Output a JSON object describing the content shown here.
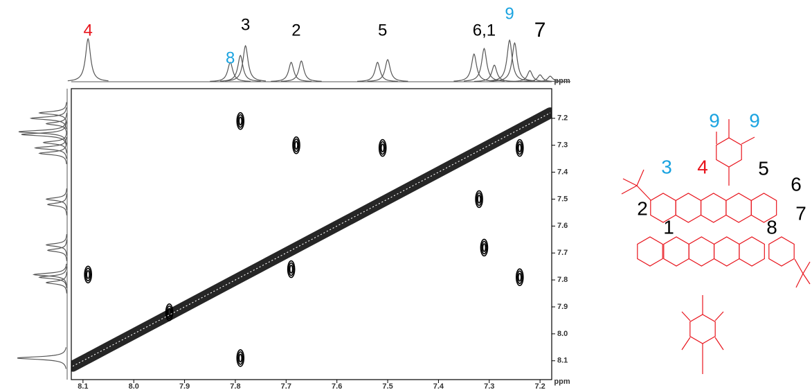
{
  "chart_data": {
    "type": "contour",
    "xlabel": "ppm",
    "trace_label": "ppm",
    "xlim": [
      8.123,
      7.177
    ],
    "ylim": [
      7.09,
      8.17
    ],
    "xticks": [
      8.1,
      {
        "value": 8,
        "label": "8.0"
      },
      7.9,
      7.8,
      7.7,
      7.6,
      7.5,
      7.4,
      7.3,
      7.2
    ],
    "yticks": [
      7.2,
      7.3,
      7.4,
      7.5,
      7.6,
      7.7,
      7.8,
      7.9,
      {
        "value": 8,
        "label": "8.0"
      },
      8.1
    ],
    "color": "#000000",
    "series": [
      {
        "name": "cross",
        "x": [
          7.79,
          7.68,
          7.51,
          7.32,
          7.31,
          7.24,
          8.09,
          7.79,
          7.24,
          7.93,
          7.69
        ],
        "y": [
          7.21,
          7.3,
          7.31,
          7.5,
          7.68,
          7.79,
          7.78,
          8.09,
          7.31,
          7.92,
          7.76
        ]
      },
      {
        "name": "diagonal",
        "x": [
          8.12,
          8.09,
          8.05,
          8.0,
          7.8,
          7.75,
          7.68,
          7.6,
          7.5,
          7.4,
          7.31,
          7.25,
          7.18
        ],
        "y": [
          8.12,
          8.09,
          8.05,
          8.0,
          7.8,
          7.75,
          7.68,
          7.6,
          7.5,
          7.4,
          7.31,
          7.25,
          7.18
        ]
      }
    ],
    "top_trace": {
      "x": [
        8.09,
        7.81,
        7.79,
        7.78,
        7.69,
        7.67,
        7.52,
        7.5,
        7.33,
        7.31,
        7.29,
        7.26,
        7.25,
        7.22,
        7.2,
        7.18
      ],
      "values": [
        62,
        28,
        38,
        52,
        28,
        30,
        28,
        32,
        40,
        48,
        24,
        60,
        56,
        16,
        10,
        8
      ]
    },
    "left_trace": {
      "y": [
        7.18,
        7.2,
        7.22,
        7.25,
        7.26,
        7.29,
        7.31,
        7.33,
        7.5,
        7.52,
        7.67,
        7.69,
        7.78,
        7.79,
        7.81,
        8.09
      ],
      "values": [
        40,
        52,
        30,
        70,
        66,
        34,
        46,
        40,
        30,
        28,
        30,
        28,
        48,
        40,
        30,
        72
      ]
    },
    "peak_labels": [
      {
        "text": "4",
        "x": 8.09,
        "color": "#e8141c"
      },
      {
        "text": "8",
        "x": 7.81,
        "color": "#1aa3e0"
      },
      {
        "text": "3",
        "x": 7.78,
        "color": "#000000"
      },
      {
        "text": "2",
        "x": 7.68,
        "color": "#000000"
      },
      {
        "text": "5",
        "x": 7.51,
        "color": "#000000"
      },
      {
        "text": "6,1",
        "x": 7.31,
        "color": "#000000"
      },
      {
        "text": "9",
        "x": 7.26,
        "color": "#1aa3e0"
      },
      {
        "text": "7",
        "x": 7.2,
        "color": "#000000"
      }
    ]
  },
  "structure": {
    "color": "#e8141c",
    "labels": [
      {
        "text": "9",
        "color": "#1aa3e0"
      },
      {
        "text": "9",
        "color": "#1aa3e0"
      },
      {
        "text": "3",
        "color": "#1aa3e0"
      },
      {
        "text": "4",
        "color": "#e8141c"
      },
      {
        "text": "5",
        "color": "#000000"
      },
      {
        "text": "6",
        "color": "#000000"
      },
      {
        "text": "2",
        "color": "#000000"
      },
      {
        "text": "7",
        "color": "#000000"
      },
      {
        "text": "1",
        "color": "#000000"
      },
      {
        "text": "8",
        "color": "#000000"
      }
    ]
  }
}
